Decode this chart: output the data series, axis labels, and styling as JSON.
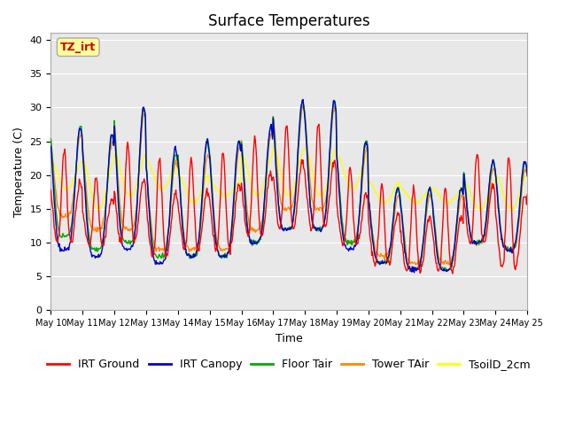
{
  "title": "Surface Temperatures",
  "xlabel": "Time",
  "ylabel": "Temperature (C)",
  "ylim": [
    0,
    41
  ],
  "annotation_text": "TZ_irt",
  "annotation_color": "#cc0000",
  "annotation_bg": "#ffff99",
  "annotation_border": "#aaaaaa",
  "bg_color": "#e8e8e8",
  "series_colors": {
    "IRT Ground": "#ff0000",
    "IRT Canopy": "#0000cc",
    "Floor Tair": "#00aa00",
    "Tower TAir": "#ff8800",
    "TsoilD_2cm": "#ffff00"
  },
  "xtick_labels": [
    "May 10",
    "May 11",
    "May 12",
    "May 13",
    "May 14",
    "May 15",
    "May 16",
    "May 17",
    "May 18",
    "May 19",
    "May 20",
    "May 21",
    "May 22",
    "May 23",
    "May 24",
    "May 25"
  ],
  "ytick_labels": [
    0,
    5,
    10,
    15,
    20,
    25,
    30,
    35,
    40
  ],
  "grid_color": "#ffffff",
  "title_fontsize": 12,
  "axis_fontsize": 9,
  "tick_fontsize": 8,
  "legend_fontsize": 9
}
